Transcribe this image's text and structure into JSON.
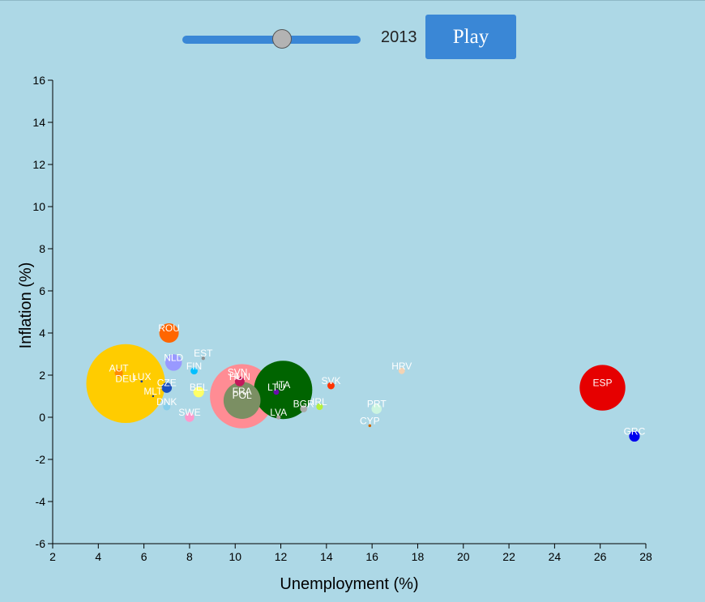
{
  "controls": {
    "year": "2013",
    "play_label": "Play",
    "slider_fraction": 0.56
  },
  "chart_data": {
    "type": "scatter",
    "xlabel": "Unemployment (%)",
    "ylabel": "Inflation (%)",
    "xlim": [
      2,
      28
    ],
    "ylim": [
      -6,
      16
    ],
    "x_ticks": [
      "2",
      "4",
      "6",
      "8",
      "10",
      "12",
      "14",
      "16",
      "18",
      "20",
      "22",
      "24",
      "26",
      "28"
    ],
    "y_ticks": [
      "-6",
      "-4",
      "-2",
      "0",
      "2",
      "4",
      "6",
      "8",
      "10",
      "12",
      "14",
      "16"
    ],
    "points": [
      {
        "label": "DEU",
        "x": 5.2,
        "y": 1.6,
        "size": 81,
        "color": "#ffcc00"
      },
      {
        "label": "FRA",
        "x": 10.3,
        "y": 1.0,
        "size": 66,
        "color": "#ff8c94"
      },
      {
        "label": "ITA",
        "x": 12.1,
        "y": 1.3,
        "size": 60,
        "color": "#006400"
      },
      {
        "label": "ESP",
        "x": 26.1,
        "y": 1.4,
        "size": 47,
        "color": "#e60000"
      },
      {
        "label": "POL",
        "x": 10.3,
        "y": 0.8,
        "size": 38,
        "color": "#7b8f63"
      },
      {
        "label": "ROU",
        "x": 7.1,
        "y": 4.0,
        "size": 20,
        "color": "#ff6600"
      },
      {
        "label": "NLD",
        "x": 7.3,
        "y": 2.6,
        "size": 17,
        "color": "#9999ff"
      },
      {
        "label": "BEL",
        "x": 8.4,
        "y": 1.2,
        "size": 11,
        "color": "#ffff66"
      },
      {
        "label": "GRC",
        "x": 27.5,
        "y": -0.9,
        "size": 11,
        "color": "#0000ee"
      },
      {
        "label": "CZE",
        "x": 7.0,
        "y": 1.4,
        "size": 10.5,
        "color": "#1a4fbf"
      },
      {
        "label": "PRT",
        "x": 16.2,
        "y": 0.4,
        "size": 10.5,
        "color": "#ccf5e0"
      },
      {
        "label": "HUN",
        "x": 10.2,
        "y": 1.7,
        "size": 10,
        "color": "#c2185b"
      },
      {
        "label": "SWE",
        "x": 8.0,
        "y": 0.0,
        "size": 9.5,
        "color": "#ff99cc"
      },
      {
        "label": "AUT",
        "x": 4.9,
        "y": 2.1,
        "size": 8.5,
        "color": "#ff8c00"
      },
      {
        "label": "BGR",
        "x": 13.0,
        "y": 0.4,
        "size": 7.2,
        "color": "#aaaaaa"
      },
      {
        "label": "DNK",
        "x": 7.0,
        "y": 0.5,
        "size": 7.5,
        "color": "#87ceeb"
      },
      {
        "label": "FIN",
        "x": 8.2,
        "y": 2.2,
        "size": 7.3,
        "color": "#00bfff"
      },
      {
        "label": "SVK",
        "x": 14.2,
        "y": 1.5,
        "size": 7.4,
        "color": "#ff3300"
      },
      {
        "label": "IRL",
        "x": 13.7,
        "y": 0.5,
        "size": 6.8,
        "color": "#b6f03c"
      },
      {
        "label": "HRV",
        "x": 17.3,
        "y": 2.2,
        "size": 6.5,
        "color": "#f3d3b4"
      },
      {
        "label": "LTU",
        "x": 11.8,
        "y": 1.2,
        "size": 5.8,
        "color": "#6a0dad"
      },
      {
        "label": "SVN",
        "x": 10.1,
        "y": 1.9,
        "size": 4.6,
        "color": "#ffd9d9"
      },
      {
        "label": "LVA",
        "x": 11.9,
        "y": 0.0,
        "size": 4.4,
        "color": "#b0a0a0"
      },
      {
        "label": "EST",
        "x": 8.6,
        "y": 2.8,
        "size": 3.6,
        "color": "#909090"
      },
      {
        "label": "CYP",
        "x": 15.9,
        "y": -0.4,
        "size": 2.9,
        "color": "#cc6600"
      },
      {
        "label": "LUX",
        "x": 5.9,
        "y": 1.7,
        "size": 2.3,
        "color": "#1e3d99"
      },
      {
        "label": "MLT",
        "x": 6.4,
        "y": 1.0,
        "size": 2.0,
        "color": "#003399"
      }
    ]
  }
}
